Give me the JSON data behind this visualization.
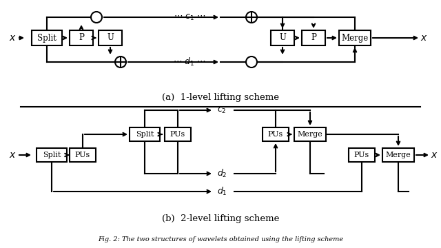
{
  "caption_a": "(a)  1-level lifting scheme",
  "caption_b": "(b)  2-level lifting scheme",
  "fig_caption": "Fig. 2: The two structures of wavelets obtained using the lifting scheme",
  "bg_color": "#ffffff",
  "lw": 1.5
}
